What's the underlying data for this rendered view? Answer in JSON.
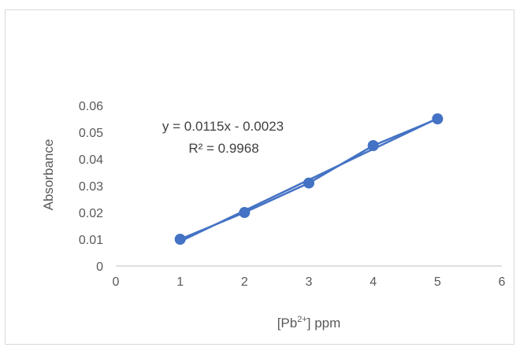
{
  "chart_data": {
    "type": "scatter",
    "title": "",
    "xlabel_prefix": "[Pb",
    "xlabel_sup": "2+",
    "xlabel_suffix": "] ppm",
    "ylabel": "Absorbance",
    "xlim": [
      0,
      6
    ],
    "ylim": [
      0,
      0.06
    ],
    "xticks": [
      0,
      1,
      2,
      3,
      4,
      5,
      6
    ],
    "yticks": [
      0,
      0.01,
      0.02,
      0.03,
      0.04,
      0.05,
      0.06
    ],
    "xtick_labels": [
      "0",
      "1",
      "2",
      "3",
      "4",
      "5",
      "6"
    ],
    "ytick_labels": [
      "0",
      "0.01",
      "0.02",
      "0.03",
      "0.04",
      "0.05",
      "0.06"
    ],
    "grid": false,
    "legend": "none",
    "series": [
      {
        "x": [
          1,
          2,
          3,
          4,
          5
        ],
        "y": [
          0.01,
          0.02,
          0.031,
          0.045,
          0.055
        ],
        "color": "#4472c4",
        "connected": true
      }
    ],
    "trendline": {
      "type": "linear",
      "slope": 0.0115,
      "intercept": -0.0023,
      "color": "#4472c4",
      "equation": "y = 0.0115x - 0.0023",
      "r_squared_label": "R² = 0.9968"
    }
  }
}
